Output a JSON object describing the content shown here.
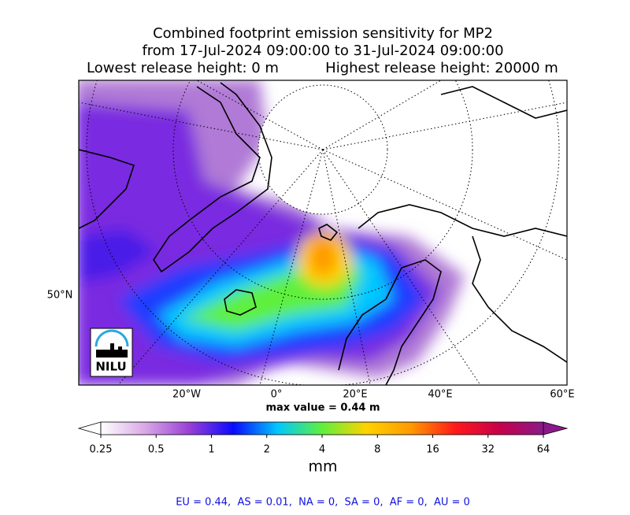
{
  "title": [
    "Combined footprint emission sensitivity for MP2",
    "from 17-Jul-2024 09:00:00 to 31-Jul-2024 09:00:00"
  ],
  "release_heights": {
    "lowest": "Lowest release height: 0 m",
    "highest": "Highest release height: 20000 m"
  },
  "map": {
    "lon_labels": [
      "20°W",
      "0°",
      "20°E",
      "40°E",
      "60°E"
    ],
    "lat_labels": [
      "50°N"
    ],
    "logo": "NILU",
    "max_value": "max value = 0.44 m"
  },
  "colorbar": {
    "ticks": [
      0.25,
      0.5,
      1,
      2,
      4,
      8,
      16,
      32,
      64
    ],
    "log_scale": true,
    "label": "mm",
    "colors": [
      "#ffffff",
      "#d9a8e6",
      "#9a3fd6",
      "#0a0aff",
      "#00c8ff",
      "#5ff03c",
      "#ffd200",
      "#ff9a00",
      "#ff1a1a",
      "#c8004a",
      "#8a1a8a"
    ]
  },
  "footer": "EU = 0.44,  AS = 0.01,  NA = 0,  SA = 0,  AF = 0,  AU = 0"
}
